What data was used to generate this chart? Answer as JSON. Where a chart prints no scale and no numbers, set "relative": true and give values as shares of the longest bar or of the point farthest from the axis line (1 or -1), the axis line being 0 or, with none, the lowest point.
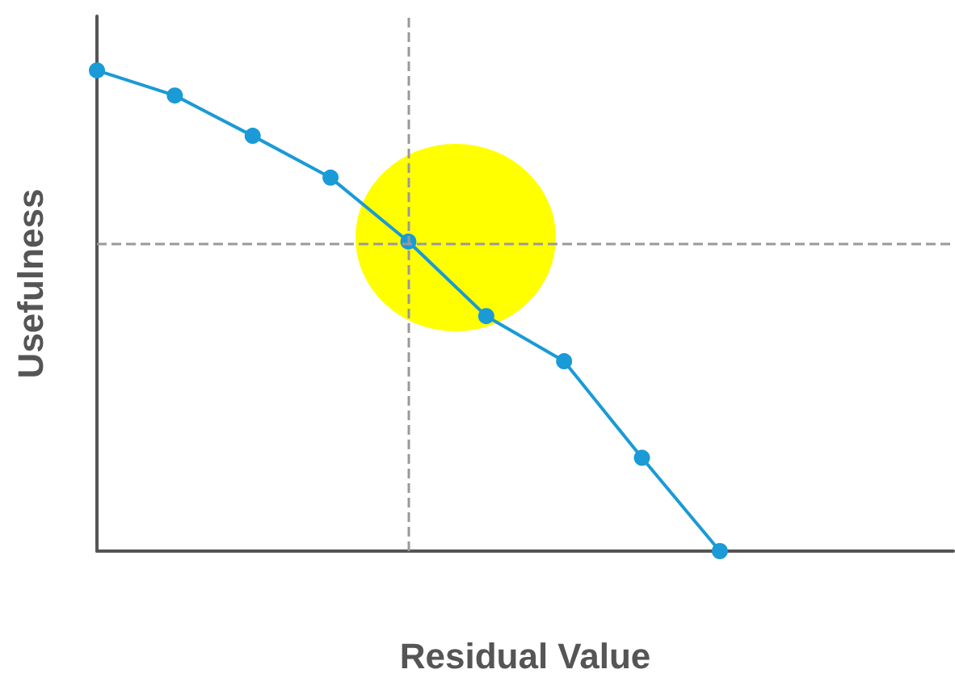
{
  "chart_data": {
    "type": "line",
    "xlabel": "Residual Value",
    "ylabel": "Usefulness",
    "relative": true,
    "tick_labels": false,
    "marker": "circle",
    "line_style": "solid",
    "categories": [
      null,
      null,
      null,
      null,
      null,
      null,
      null,
      null,
      null
    ],
    "series": [
      {
        "color": "#1a9ad6",
        "values": [
          1,
          0.948,
          0.864,
          0.777,
          0.644,
          0.489,
          0.395,
          0.194,
          0
        ]
      }
    ],
    "ref_lines": [
      {
        "axis": "y",
        "value": 0.64,
        "color": "#999999",
        "line_style": "dashed"
      }
    ]
  }
}
